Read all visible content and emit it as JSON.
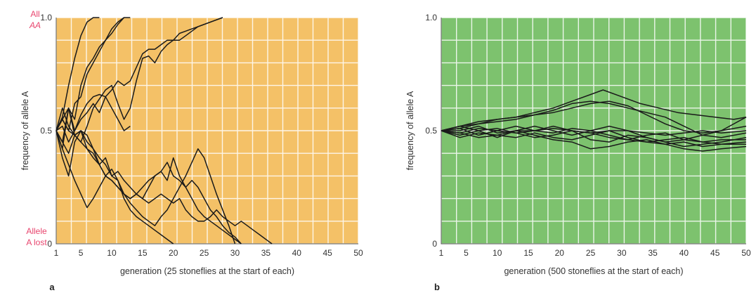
{
  "panels": [
    {
      "letter": "a",
      "corner_top": [
        "All",
        "AA"
      ],
      "corner_bottom": [
        "Allele",
        "A lost"
      ],
      "bg_color": "#f4c167",
      "grid_color": "#ffffff",
      "line_color": "#1a1a1a",
      "accent_color": "#e8456e",
      "chart_data": {
        "type": "line",
        "xlabel": "generation (25 stoneflies at the start of each)",
        "ylabel": "frequency of allele A",
        "xlim": [
          1,
          50
        ],
        "ylim": [
          0,
          1
        ],
        "x_ticks": [
          "1",
          "5",
          "10",
          "15",
          "20",
          "25",
          "30",
          "35",
          "40",
          "45",
          "50"
        ],
        "x_tick_values": [
          1,
          5,
          10,
          15,
          20,
          25,
          30,
          35,
          40,
          45,
          50
        ],
        "y_ticks": [
          "0",
          "0.5",
          "1.0"
        ],
        "y_tick_values": [
          0,
          0.5,
          1.0
        ],
        "grid": true,
        "series": [
          {
            "x": [
              1,
              2,
              3,
              4,
              5,
              6,
              7,
              8
            ],
            "y": [
              0.5,
              0.56,
              0.7,
              0.82,
              0.92,
              0.98,
              1.0,
              1.0
            ]
          },
          {
            "x": [
              1,
              2,
              3,
              4,
              5,
              6,
              7,
              8,
              9,
              10,
              11,
              12
            ],
            "y": [
              0.5,
              0.45,
              0.6,
              0.55,
              0.7,
              0.78,
              0.82,
              0.87,
              0.9,
              0.95,
              0.98,
              1.0
            ]
          },
          {
            "x": [
              1,
              2,
              3,
              4,
              5,
              6,
              7,
              8,
              9,
              10,
              11,
              12,
              13
            ],
            "y": [
              0.5,
              0.55,
              0.5,
              0.62,
              0.65,
              0.75,
              0.8,
              0.85,
              0.9,
              0.93,
              0.97,
              1.0,
              1.0
            ]
          },
          {
            "x": [
              1,
              2,
              3,
              4,
              5,
              6,
              7,
              8,
              9,
              10,
              11,
              12,
              13,
              14,
              15,
              16,
              17,
              18,
              19,
              20,
              21,
              22,
              23,
              24,
              25,
              26,
              27,
              28
            ],
            "y": [
              0.5,
              0.42,
              0.6,
              0.5,
              0.55,
              0.58,
              0.62,
              0.58,
              0.65,
              0.68,
              0.72,
              0.7,
              0.72,
              0.78,
              0.84,
              0.86,
              0.86,
              0.88,
              0.9,
              0.9,
              0.93,
              0.94,
              0.95,
              0.96,
              0.97,
              0.98,
              0.99,
              1.0
            ]
          },
          {
            "x": [
              1,
              2,
              3,
              4,
              5,
              6,
              7,
              8,
              9,
              10,
              11,
              12,
              13,
              14,
              15,
              16,
              17,
              18,
              19,
              20,
              21,
              22,
              23,
              24,
              25,
              26,
              27,
              28
            ],
            "y": [
              0.5,
              0.55,
              0.6,
              0.48,
              0.45,
              0.52,
              0.6,
              0.64,
              0.68,
              0.7,
              0.62,
              0.55,
              0.6,
              0.72,
              0.82,
              0.83,
              0.8,
              0.85,
              0.88,
              0.9,
              0.9,
              0.92,
              0.94,
              0.96,
              0.97,
              0.98,
              0.99,
              1.0
            ]
          },
          {
            "x": [
              1,
              2,
              3,
              4,
              5,
              6,
              7,
              8,
              9,
              10,
              11,
              12,
              13
            ],
            "y": [
              0.5,
              0.52,
              0.45,
              0.5,
              0.57,
              0.62,
              0.65,
              0.66,
              0.65,
              0.6,
              0.55,
              0.5,
              0.52
            ]
          },
          {
            "x": [
              1,
              2,
              3,
              4,
              5,
              6,
              7,
              8,
              9,
              10,
              11,
              12,
              13,
              14,
              15,
              16,
              17,
              18,
              19,
              20
            ],
            "y": [
              0.5,
              0.42,
              0.35,
              0.28,
              0.22,
              0.16,
              0.2,
              0.25,
              0.3,
              0.33,
              0.28,
              0.2,
              0.15,
              0.12,
              0.1,
              0.08,
              0.06,
              0.04,
              0.02,
              0.0
            ]
          },
          {
            "x": [
              1,
              2,
              3,
              4,
              5,
              6,
              7,
              8,
              9,
              10,
              11,
              12,
              13,
              14,
              15,
              16,
              17,
              18,
              19,
              20,
              21,
              22,
              23,
              24,
              25,
              26,
              27,
              28,
              29,
              30,
              31
            ],
            "y": [
              0.5,
              0.45,
              0.4,
              0.48,
              0.5,
              0.45,
              0.42,
              0.35,
              0.38,
              0.3,
              0.32,
              0.28,
              0.25,
              0.22,
              0.2,
              0.25,
              0.3,
              0.32,
              0.36,
              0.3,
              0.28,
              0.25,
              0.28,
              0.25,
              0.2,
              0.15,
              0.12,
              0.08,
              0.05,
              0.03,
              0.0
            ]
          },
          {
            "x": [
              1,
              2,
              3,
              4,
              5,
              6,
              7,
              8,
              9,
              10,
              11,
              12,
              13,
              14,
              15,
              16,
              17,
              18,
              19,
              20,
              21,
              22,
              23,
              24,
              25,
              26,
              27,
              28,
              29,
              30,
              31
            ],
            "y": [
              0.5,
              0.55,
              0.5,
              0.48,
              0.45,
              0.42,
              0.38,
              0.35,
              0.3,
              0.28,
              0.25,
              0.22,
              0.2,
              0.22,
              0.25,
              0.28,
              0.3,
              0.32,
              0.28,
              0.38,
              0.3,
              0.25,
              0.2,
              0.15,
              0.12,
              0.1,
              0.08,
              0.06,
              0.04,
              0.02,
              0.0
            ]
          },
          {
            "x": [
              1,
              2,
              3,
              4,
              5,
              6,
              7,
              8,
              9,
              10,
              11,
              12,
              13,
              14,
              15,
              16,
              17,
              18,
              19,
              20,
              21,
              22,
              23,
              24,
              25,
              26,
              27,
              28,
              29,
              30
            ],
            "y": [
              0.5,
              0.38,
              0.3,
              0.45,
              0.5,
              0.48,
              0.42,
              0.38,
              0.35,
              0.3,
              0.28,
              0.22,
              0.18,
              0.15,
              0.12,
              0.1,
              0.08,
              0.12,
              0.15,
              0.2,
              0.25,
              0.3,
              0.36,
              0.42,
              0.38,
              0.3,
              0.22,
              0.15,
              0.08,
              0.0
            ]
          },
          {
            "x": [
              1,
              2,
              3,
              4,
              5,
              6,
              7,
              8,
              9,
              10,
              11,
              12,
              13,
              14,
              15,
              16,
              17,
              18,
              19,
              20,
              21,
              22,
              23,
              24,
              25,
              26,
              27,
              28,
              29,
              30,
              31,
              32,
              33,
              34,
              35,
              36
            ],
            "y": [
              0.5,
              0.6,
              0.52,
              0.48,
              0.5,
              0.42,
              0.4,
              0.35,
              0.3,
              0.28,
              0.25,
              0.22,
              0.2,
              0.22,
              0.2,
              0.18,
              0.2,
              0.22,
              0.2,
              0.18,
              0.2,
              0.15,
              0.12,
              0.1,
              0.1,
              0.12,
              0.15,
              0.12,
              0.1,
              0.08,
              0.1,
              0.08,
              0.06,
              0.04,
              0.02,
              0.0
            ]
          }
        ]
      }
    },
    {
      "letter": "b",
      "corner_top": [],
      "corner_bottom": [],
      "bg_color": "#7dc26e",
      "grid_color": "#ffffff",
      "line_color": "#1a1a1a",
      "accent_color": "#e8456e",
      "chart_data": {
        "type": "line",
        "xlabel": "generation (500 stoneflies at the start of each)",
        "ylabel": "frequency of allele A",
        "xlim": [
          1,
          50
        ],
        "ylim": [
          0,
          1
        ],
        "x_ticks": [
          "1",
          "5",
          "10",
          "15",
          "20",
          "25",
          "30",
          "35",
          "40",
          "45",
          "50"
        ],
        "x_tick_values": [
          1,
          5,
          10,
          15,
          20,
          25,
          30,
          35,
          40,
          45,
          50
        ],
        "y_ticks": [
          "0",
          "0.5",
          "1.0"
        ],
        "y_tick_values": [
          0,
          0.5,
          1.0
        ],
        "grid": true,
        "series": [
          {
            "x": [
              1,
              4,
              7,
              10,
              13,
              16,
              19,
              22,
              25,
              27,
              30,
              33,
              36,
              39,
              42,
              45,
              48,
              50
            ],
            "y": [
              0.5,
              0.52,
              0.54,
              0.55,
              0.56,
              0.58,
              0.6,
              0.63,
              0.66,
              0.68,
              0.65,
              0.62,
              0.6,
              0.58,
              0.57,
              0.56,
              0.55,
              0.56
            ]
          },
          {
            "x": [
              1,
              4,
              7,
              10,
              13,
              16,
              19,
              22,
              25,
              28,
              31,
              34,
              37,
              40,
              43,
              46,
              50
            ],
            "y": [
              0.5,
              0.51,
              0.53,
              0.55,
              0.56,
              0.57,
              0.59,
              0.62,
              0.63,
              0.62,
              0.6,
              0.58,
              0.56,
              0.52,
              0.48,
              0.5,
              0.56
            ]
          },
          {
            "x": [
              1,
              4,
              7,
              10,
              13,
              16,
              19,
              22,
              25,
              28,
              31,
              34,
              37,
              40,
              43,
              46,
              50
            ],
            "y": [
              0.5,
              0.52,
              0.53,
              0.54,
              0.55,
              0.57,
              0.58,
              0.6,
              0.62,
              0.63,
              0.61,
              0.57,
              0.53,
              0.5,
              0.49,
              0.5,
              0.52
            ]
          },
          {
            "x": [
              1,
              4,
              7,
              10,
              13,
              16,
              19,
              22,
              25,
              28,
              31,
              34,
              37,
              40,
              43,
              46,
              50
            ],
            "y": [
              0.5,
              0.49,
              0.51,
              0.5,
              0.52,
              0.5,
              0.51,
              0.5,
              0.49,
              0.5,
              0.5,
              0.49,
              0.48,
              0.49,
              0.5,
              0.49,
              0.5
            ]
          },
          {
            "x": [
              1,
              4,
              7,
              10,
              13,
              16,
              19,
              22,
              25,
              28,
              31,
              34,
              37,
              40,
              43,
              46,
              50
            ],
            "y": [
              0.5,
              0.48,
              0.5,
              0.47,
              0.5,
              0.52,
              0.5,
              0.48,
              0.5,
              0.52,
              0.5,
              0.47,
              0.45,
              0.46,
              0.48,
              0.47,
              0.49
            ]
          },
          {
            "x": [
              1,
              4,
              7,
              10,
              13,
              16,
              19,
              22,
              25,
              28,
              31,
              34,
              37,
              40,
              43,
              46,
              50
            ],
            "y": [
              0.5,
              0.51,
              0.48,
              0.5,
              0.49,
              0.47,
              0.48,
              0.5,
              0.46,
              0.45,
              0.48,
              0.47,
              0.45,
              0.43,
              0.44,
              0.45,
              0.47
            ]
          },
          {
            "x": [
              1,
              4,
              7,
              10,
              13,
              16,
              19,
              22,
              25,
              28,
              31,
              34,
              37,
              40,
              43,
              46,
              50
            ],
            "y": [
              0.5,
              0.47,
              0.49,
              0.48,
              0.47,
              0.49,
              0.47,
              0.46,
              0.48,
              0.5,
              0.47,
              0.45,
              0.44,
              0.45,
              0.43,
              0.44,
              0.44
            ]
          },
          {
            "x": [
              1,
              4,
              7,
              10,
              13,
              16,
              19,
              22,
              25,
              28,
              31,
              34,
              37,
              40,
              43,
              46,
              50
            ],
            "y": [
              0.5,
              0.49,
              0.47,
              0.48,
              0.5,
              0.48,
              0.46,
              0.45,
              0.42,
              0.43,
              0.45,
              0.46,
              0.44,
              0.42,
              0.41,
              0.42,
              0.43
            ]
          },
          {
            "x": [
              1,
              4,
              7,
              10,
              13,
              16,
              19,
              22,
              25,
              28,
              31,
              34,
              37,
              40,
              43,
              46,
              50
            ],
            "y": [
              0.5,
              0.52,
              0.5,
              0.51,
              0.49,
              0.5,
              0.52,
              0.5,
              0.49,
              0.47,
              0.46,
              0.48,
              0.49,
              0.46,
              0.45,
              0.44,
              0.45
            ]
          },
          {
            "x": [
              1,
              4,
              7,
              10,
              13,
              16,
              19,
              22,
              25,
              28,
              31,
              34,
              37,
              40,
              43,
              46,
              50
            ],
            "y": [
              0.5,
              0.5,
              0.52,
              0.49,
              0.5,
              0.5,
              0.49,
              0.51,
              0.5,
              0.48,
              0.46,
              0.45,
              0.46,
              0.47,
              0.45,
              0.46,
              0.46
            ]
          }
        ]
      }
    }
  ]
}
